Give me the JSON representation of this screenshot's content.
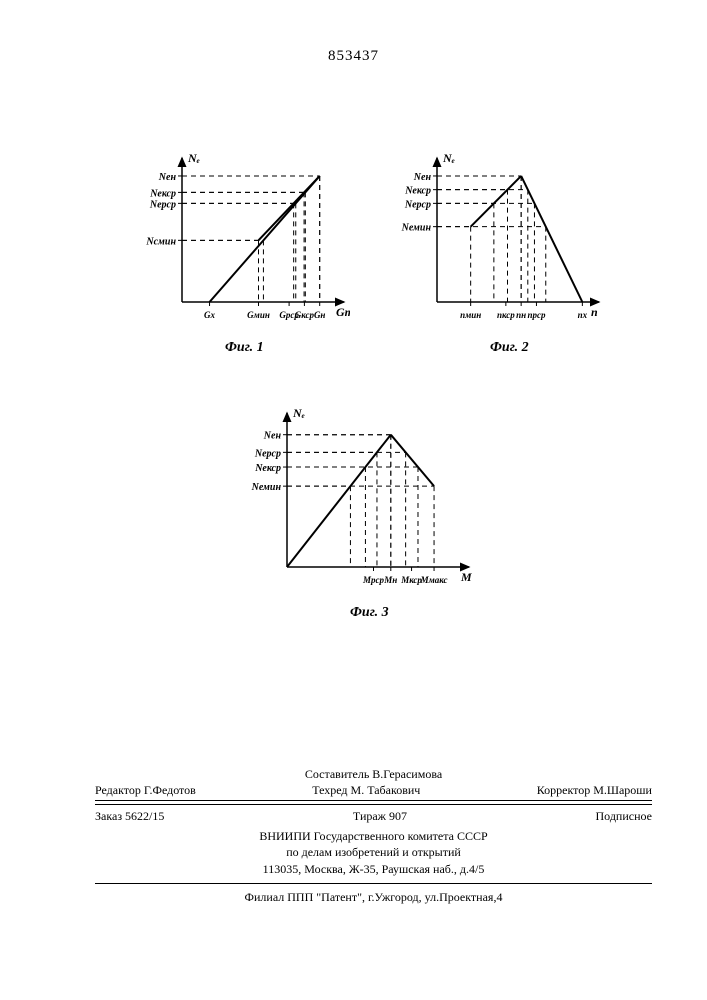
{
  "patent_number": "853437",
  "fig1": {
    "caption": "Фиг. 1",
    "y_axis": "Nₑ",
    "x_axis": "Gт",
    "y_ticks": [
      "Nен",
      "Neкср",
      "Neрср",
      "Ncмин"
    ],
    "x_ticks": [
      "Gх",
      "Gмин",
      "Gрср",
      "Gкср",
      "Gн"
    ],
    "y_tick_pos": [
      0.92,
      0.8,
      0.72,
      0.45
    ],
    "x_tick_pos": [
      0.18,
      0.5,
      0.7,
      0.8,
      0.9
    ],
    "line1": [
      [
        0.18,
        0
      ],
      [
        0.9,
        0.92
      ]
    ],
    "line2": [
      [
        0.5,
        0.45
      ],
      [
        0.9,
        0.92
      ]
    ],
    "stroke": "#000000"
  },
  "fig2": {
    "caption": "Фиг. 2",
    "y_axis": "Nₑ",
    "x_axis": "n",
    "y_ticks": [
      "Nен",
      "Nекср",
      "Nерср",
      "Nемин"
    ],
    "x_ticks": [
      "nмин",
      "nкср",
      "nн",
      "nрср",
      "nх"
    ],
    "y_tick_pos": [
      0.92,
      0.82,
      0.72,
      0.55
    ],
    "x_tick_pos": [
      0.22,
      0.45,
      0.55,
      0.65,
      0.95
    ],
    "line1": [
      [
        0.22,
        0.55
      ],
      [
        0.55,
        0.92
      ]
    ],
    "line2": [
      [
        0.55,
        0.92
      ],
      [
        0.95,
        0
      ]
    ],
    "stroke": "#000000"
  },
  "fig3": {
    "caption": "Фиг. 3",
    "y_axis": "Nₑ",
    "x_axis": "M",
    "y_ticks": [
      "Nен",
      "Neрср",
      "Neкср",
      "Nемин"
    ],
    "x_ticks": [
      "Mрср",
      "Mн",
      "Mкср",
      "Mмакс"
    ],
    "y_tick_pos": [
      0.9,
      0.78,
      0.68,
      0.55
    ],
    "x_tick_pos": [
      0.5,
      0.6,
      0.72,
      0.85
    ],
    "line1": [
      [
        0,
        0
      ],
      [
        0.6,
        0.9
      ]
    ],
    "line2": [
      [
        0.6,
        0.9
      ],
      [
        0.85,
        0.55
      ]
    ],
    "stroke": "#000000"
  },
  "footer": {
    "compiler": "Составитель В.Герасимова",
    "editor": "Редактор Г.Федотов",
    "techred": "Техред М. Табакович",
    "corrector": "Корректор М.Шароши",
    "order": "Заказ 5622/15",
    "tirage": "Тираж 907",
    "subscription": "Подписное",
    "org1": "ВНИИПИ Государственного комитета СССР",
    "org2": "по делам изобретений и открытий",
    "addr": "113035, Москва, Ж-35, Раушская наб., д.4/5",
    "branch": "Филиал ППП \"Патент\", г.Ужгород, ул.Проектная,4"
  }
}
